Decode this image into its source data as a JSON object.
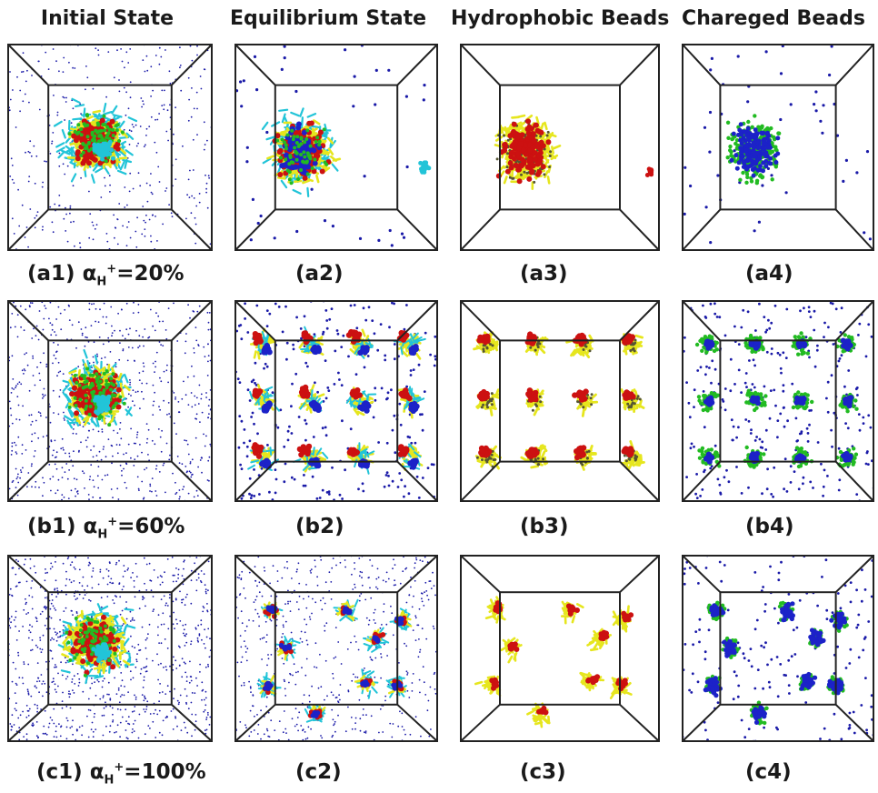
{
  "headers": [
    "Initial State",
    "Equilibrium State",
    "Hydrophobic Beads",
    "Chareged Beads"
  ],
  "rows": [
    {
      "labels": [
        "(a1)",
        "(a2)",
        "(a3)",
        "(a4)"
      ],
      "alpha": {
        "symbol": "α",
        "sub": "H",
        "sup": "+",
        "value": "=20%"
      }
    },
    {
      "labels": [
        "(b1)",
        "(b2)",
        "(b3)",
        "(b4)"
      ],
      "alpha": {
        "symbol": "α",
        "sub": "H",
        "sup": "+",
        "value": "=60%"
      }
    },
    {
      "labels": [
        "(c1)",
        "(c2)",
        "(c3)",
        "(c4)"
      ],
      "alpha": {
        "symbol": "α",
        "sub": "H",
        "sup": "+",
        "value": "=100%"
      }
    }
  ],
  "colors": {
    "box_edge": "#222222",
    "counterion": "#1a1aa8",
    "hydrophobic": "#e6e61e",
    "hydrophobic_dark": "#555533",
    "charged_cationic": "#cc1111",
    "charged_anionic": "#22bb22",
    "core_blue": "#1c22c8",
    "cyan_tail": "#22c4d8"
  }
}
